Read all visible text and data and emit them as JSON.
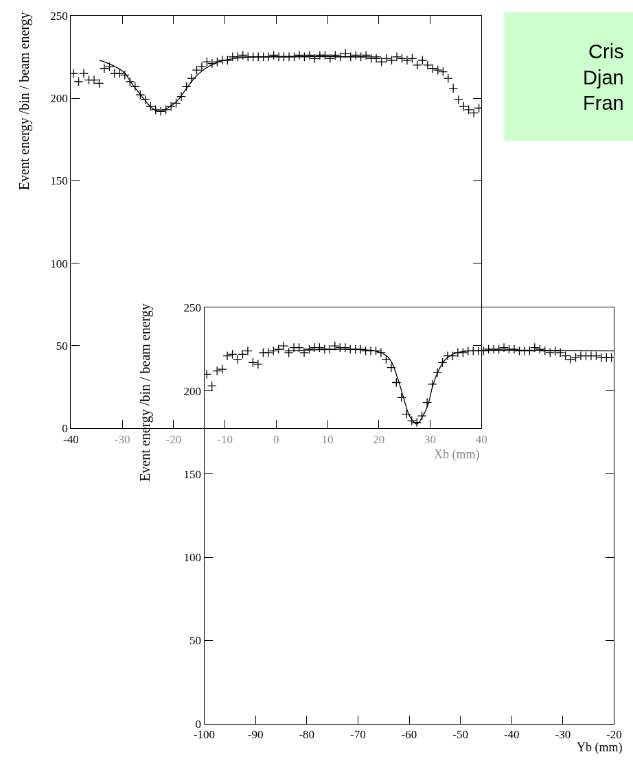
{
  "chart_data": [
    {
      "type": "scatter",
      "xlabel": "Xb (mm)",
      "ylabel": "Event energy /bin / beam energy",
      "xlim": [
        -40,
        40
      ],
      "ylim": [
        0,
        250
      ],
      "xticks": [
        -40,
        -30,
        -20,
        -10,
        0,
        10,
        20,
        30,
        40
      ],
      "yticks": [
        0,
        50,
        100,
        150,
        200,
        250
      ],
      "grid": false,
      "series": [
        {
          "type": "scatter",
          "marker": "cross",
          "color": "#000000",
          "x": [
            -39.5,
            -38.5,
            -37.5,
            -36.5,
            -35.5,
            -34.5,
            -33.5,
            -32.5,
            -31.5,
            -30.5,
            -29.5,
            -28.5,
            -27.5,
            -26.5,
            -25.5,
            -24.5,
            -23.5,
            -22.5,
            -21.5,
            -20.5,
            -19.5,
            -18.5,
            -17.5,
            -16.5,
            -15.5,
            -14.5,
            -13.5,
            -12.5,
            -11.5,
            -10.5,
            -9.5,
            -8.5,
            -7.5,
            -6.5,
            -5.5,
            -4.5,
            -3.5,
            -2.5,
            -1.5,
            -0.5,
            0.5,
            1.5,
            2.5,
            3.5,
            4.5,
            5.5,
            6.5,
            7.5,
            8.5,
            9.5,
            10.5,
            11.5,
            12.5,
            13.5,
            14.5,
            15.5,
            16.5,
            17.5,
            18.5,
            19.5,
            20.5,
            21.5,
            22.5,
            23.5,
            24.5,
            25.5,
            26.5,
            27.5,
            28.5,
            29.5,
            30.5,
            31.5,
            32.5,
            33.5,
            34.5,
            35.5,
            36.5,
            37.5,
            38.5,
            39.5
          ],
          "values": [
            215,
            210,
            215,
            211,
            211,
            209,
            218,
            219,
            215,
            215,
            214,
            210,
            207,
            202,
            199,
            195,
            193,
            192,
            193,
            195,
            197,
            201,
            207,
            212,
            217,
            219,
            222,
            221,
            222,
            223,
            223,
            225,
            225,
            226,
            225,
            225,
            225,
            225,
            225,
            226,
            225,
            225,
            225,
            225,
            226,
            225,
            226,
            224,
            226,
            226,
            224,
            226,
            225,
            227,
            225,
            226,
            225,
            226,
            224,
            224,
            222,
            224,
            223,
            225,
            224,
            223,
            224,
            220,
            223,
            220,
            218,
            217,
            216,
            212,
            206,
            199,
            195,
            193,
            191,
            194
          ]
        },
        {
          "type": "line",
          "line_style": "solid",
          "color": "#000000",
          "x": [
            -34.5,
            -32,
            -29.8,
            -27.7,
            -25.9,
            -24.2,
            -22.7,
            -21.2,
            -19.4,
            -17.7,
            -16,
            -13.8,
            -11.2,
            -8.2,
            -3.9,
            20.4
          ],
          "values": [
            223,
            220,
            216,
            207,
            200,
            194,
            192,
            194,
            198,
            205,
            212,
            218,
            222,
            224,
            225,
            225
          ]
        }
      ]
    },
    {
      "type": "scatter",
      "xlabel": "Yb (mm)",
      "ylabel": "Event energy /bin / beam energy",
      "xlim": [
        -100,
        -20
      ],
      "ylim": [
        0,
        250
      ],
      "xticks": [
        -100,
        -90,
        -80,
        -70,
        -60,
        -50,
        -40,
        -30,
        -20
      ],
      "yticks": [
        0,
        50,
        100,
        150,
        200,
        250
      ],
      "grid": false,
      "series": [
        {
          "type": "scatter",
          "marker": "cross",
          "color": "#000000",
          "x": [
            -99.5,
            -98.5,
            -97.5,
            -96.5,
            -95.5,
            -94.5,
            -93.5,
            -92.5,
            -91.5,
            -90.5,
            -89.5,
            -88.5,
            -87.5,
            -86.5,
            -85.5,
            -84.5,
            -83.5,
            -82.5,
            -81.5,
            -80.5,
            -79.5,
            -78.5,
            -77.5,
            -76.5,
            -75.5,
            -74.5,
            -73.5,
            -72.5,
            -71.5,
            -70.5,
            -69.5,
            -68.5,
            -67.5,
            -66.5,
            -65.5,
            -64.5,
            -63.5,
            -62.5,
            -61.5,
            -60.5,
            -59.5,
            -58.5,
            -57.5,
            -56.5,
            -55.5,
            -54.5,
            -53.5,
            -52.5,
            -51.5,
            -50.5,
            -49.5,
            -48.5,
            -47.5,
            -46.5,
            -45.5,
            -44.5,
            -43.5,
            -42.5,
            -41.5,
            -40.5,
            -39.5,
            -38.5,
            -37.5,
            -36.5,
            -35.5,
            -34.5,
            -33.5,
            -32.5,
            -31.5,
            -30.5,
            -29.5,
            -28.5,
            -27.5,
            -26.5,
            -25.5,
            -24.5,
            -23.5,
            -22.5,
            -21.5,
            -20.5
          ],
          "values": [
            210,
            203,
            212,
            213,
            221,
            222,
            219,
            222,
            224,
            217,
            216,
            223,
            223,
            224,
            225,
            227,
            223,
            226,
            226,
            223,
            225,
            226,
            226,
            225,
            225,
            227,
            226,
            226,
            225,
            225,
            225,
            224,
            224,
            224,
            223,
            219,
            214,
            205,
            196,
            186,
            182,
            181,
            185,
            193,
            204,
            211,
            217,
            221,
            221,
            223,
            223,
            224,
            224,
            224,
            224,
            225,
            225,
            225,
            226,
            225,
            225,
            224,
            224,
            224,
            226,
            225,
            224,
            223,
            224,
            223,
            221,
            219,
            220,
            221,
            221,
            221,
            221,
            220,
            220,
            220
          ]
        },
        {
          "type": "line",
          "line_style": "solid",
          "color": "#000000",
          "x": [
            -84.3,
            -66.8,
            -64.4,
            -63.4,
            -62.3,
            -61.2,
            -60.1,
            -59.3,
            -58.5,
            -57.5,
            -56.4,
            -55.4,
            -54.3,
            -53.2,
            -52.1,
            -50.6,
            -48,
            -20
          ],
          "values": [
            224,
            224,
            221,
            217,
            208,
            197,
            186,
            182,
            180,
            184,
            191,
            203,
            212,
            218,
            221,
            223,
            224,
            224
          ]
        }
      ]
    },
    {
      "type": "other",
      "color": "#ccffcc",
      "annotations": [
        "Cris",
        "Djan",
        "Fran"
      ]
    }
  ]
}
